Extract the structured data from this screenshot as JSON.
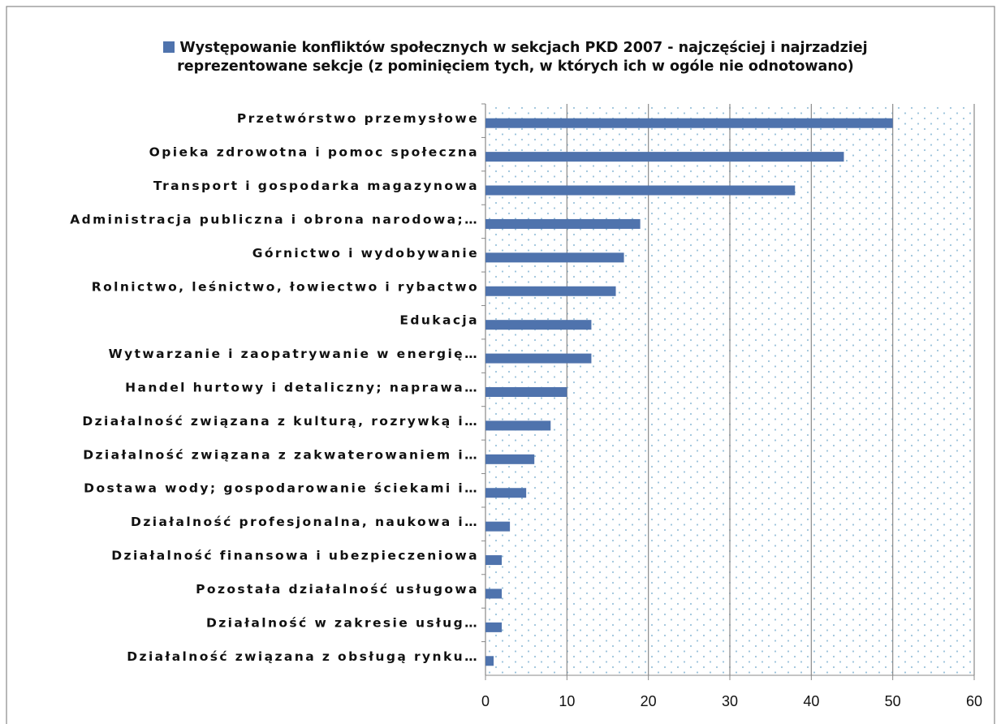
{
  "chart_data": {
    "type": "bar",
    "orientation": "horizontal",
    "series": [
      {
        "name": "Występowanie konfliktów społecznych w sekcjach PKD 2007 - najczęściej i najrzadziej reprezentowane sekcje (z pominięciem tych, w których ich w ogóle nie odnotowano)",
        "color": "#4f73ad",
        "values": [
          50,
          44,
          38,
          19,
          17,
          16,
          13,
          13,
          10,
          8,
          6,
          5,
          3,
          2,
          2,
          2,
          1
        ]
      }
    ],
    "categories": [
      "Przetwórstwo przemysłowe",
      "Opieka zdrowotna i pomoc społeczna",
      "Transport i gospodarka magazynowa",
      "Administracja publiczna i obrona narodowa;…",
      "Górnictwo i wydobywanie",
      "Rolnictwo, leśnictwo, łowiectwo i rybactwo",
      "Edukacja",
      "Wytwarzanie i zaopatrywanie w energię…",
      "Handel hurtowy i detaliczny; naprawa…",
      "Działalność związana z kulturą, rozrywką i…",
      "Działalność związana z zakwaterowaniem i…",
      "Dostawa wody; gospodarowanie ściekami i…",
      "Działalność profesjonalna, naukowa i…",
      "Działalność finansowa i ubezpieczeniowa",
      "Pozostała działalność usługowa",
      "Działalność w zakresie usług…",
      "Działalność związana z obsługą rynku…"
    ],
    "xlim": [
      0,
      60
    ],
    "xticks": [
      0,
      10,
      20,
      30,
      40,
      50,
      60
    ],
    "grid": true,
    "legend": "top"
  }
}
